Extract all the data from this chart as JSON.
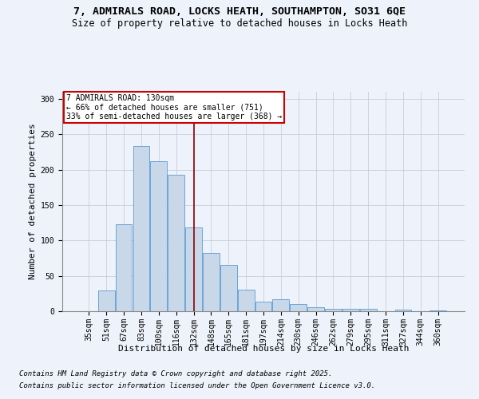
{
  "title_line1": "7, ADMIRALS ROAD, LOCKS HEATH, SOUTHAMPTON, SO31 6QE",
  "title_line2": "Size of property relative to detached houses in Locks Heath",
  "xlabel": "Distribution of detached houses by size in Locks Heath",
  "ylabel": "Number of detached properties",
  "categories": [
    "35sqm",
    "51sqm",
    "67sqm",
    "83sqm",
    "100sqm",
    "116sqm",
    "132sqm",
    "148sqm",
    "165sqm",
    "181sqm",
    "197sqm",
    "214sqm",
    "230sqm",
    "246sqm",
    "262sqm",
    "279sqm",
    "295sqm",
    "311sqm",
    "327sqm",
    "344sqm",
    "360sqm"
  ],
  "bar_values": [
    0,
    29,
    123,
    233,
    212,
    193,
    118,
    82,
    65,
    30,
    14,
    17,
    10,
    6,
    3,
    3,
    3,
    0,
    2,
    0,
    1
  ],
  "bar_color": "#c8d8e8",
  "bar_edge_color": "#5b9bd5",
  "vline_x_index": 6,
  "vline_color": "#8b0000",
  "annotation_title": "7 ADMIRALS ROAD: 130sqm",
  "annotation_line1": "← 66% of detached houses are smaller (751)",
  "annotation_line2": "33% of semi-detached houses are larger (368) →",
  "annotation_box_color": "#ffffff",
  "annotation_box_edge": "#cc0000",
  "footer_line1": "Contains HM Land Registry data © Crown copyright and database right 2025.",
  "footer_line2": "Contains public sector information licensed under the Open Government Licence v3.0.",
  "background_color": "#eef2fb",
  "ylim": [
    0,
    310
  ],
  "title_fontsize": 9.5,
  "subtitle_fontsize": 8.5,
  "axis_label_fontsize": 8,
  "tick_fontsize": 7,
  "annotation_fontsize": 7,
  "footer_fontsize": 6.5
}
